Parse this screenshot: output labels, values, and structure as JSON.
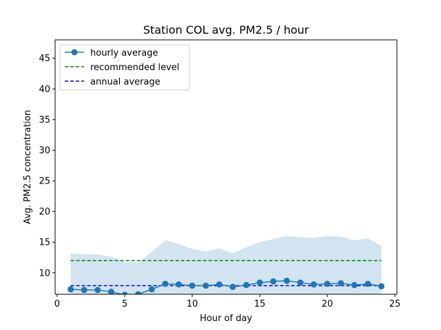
{
  "chart_data": {
    "type": "line",
    "title": "Station COL avg. PM2.5 / hour",
    "xlabel": "Hour of day",
    "ylabel": "Avg. PM2.5 concentration",
    "xlim": [
      -0.15,
      25.15
    ],
    "ylim": [
      6.5,
      48
    ],
    "xticks": [
      0,
      5,
      10,
      15,
      20,
      25
    ],
    "yticks": [
      10,
      15,
      20,
      25,
      30,
      35,
      40,
      45
    ],
    "grid": false,
    "legend_position": "top-left",
    "x": [
      1,
      2,
      3,
      4,
      5,
      6,
      7,
      8,
      9,
      10,
      11,
      12,
      13,
      14,
      15,
      16,
      17,
      18,
      19,
      20,
      21,
      22,
      23,
      24
    ],
    "series": [
      {
        "name": "hourly average",
        "color": "#1f77b4",
        "values": [
          7.3,
          7.2,
          7.2,
          6.9,
          6.4,
          6.5,
          7.3,
          8.2,
          8.1,
          7.9,
          7.9,
          8.1,
          7.7,
          8.0,
          8.4,
          8.6,
          8.7,
          8.4,
          8.1,
          8.2,
          8.3,
          8.0,
          8.2,
          7.8
        ]
      }
    ],
    "band": {
      "color": "#1f77b4",
      "upper": [
        13.2,
        13.0,
        13.0,
        12.6,
        11.8,
        11.7,
        13.4,
        15.3,
        14.7,
        13.9,
        13.5,
        14.0,
        13.2,
        14.2,
        15.0,
        15.5,
        16.0,
        15.8,
        15.7,
        16.0,
        15.9,
        15.3,
        15.6,
        14.4
      ],
      "lower": [
        1.0,
        1.0,
        1.0,
        1.0,
        1.0,
        1.0,
        1.0,
        1.0,
        1.0,
        1.0,
        1.0,
        1.0,
        1.0,
        1.0,
        1.0,
        1.0,
        1.0,
        1.0,
        1.0,
        1.0,
        1.0,
        1.0,
        1.0,
        1.0
      ]
    },
    "reference_lines": [
      {
        "name": "recommended level",
        "value": 12.0,
        "color": "#008000",
        "x_range": [
          1,
          24
        ]
      },
      {
        "name": "annual average",
        "value": 7.9,
        "color": "#0000cc",
        "x_range": [
          1,
          24
        ]
      }
    ]
  }
}
